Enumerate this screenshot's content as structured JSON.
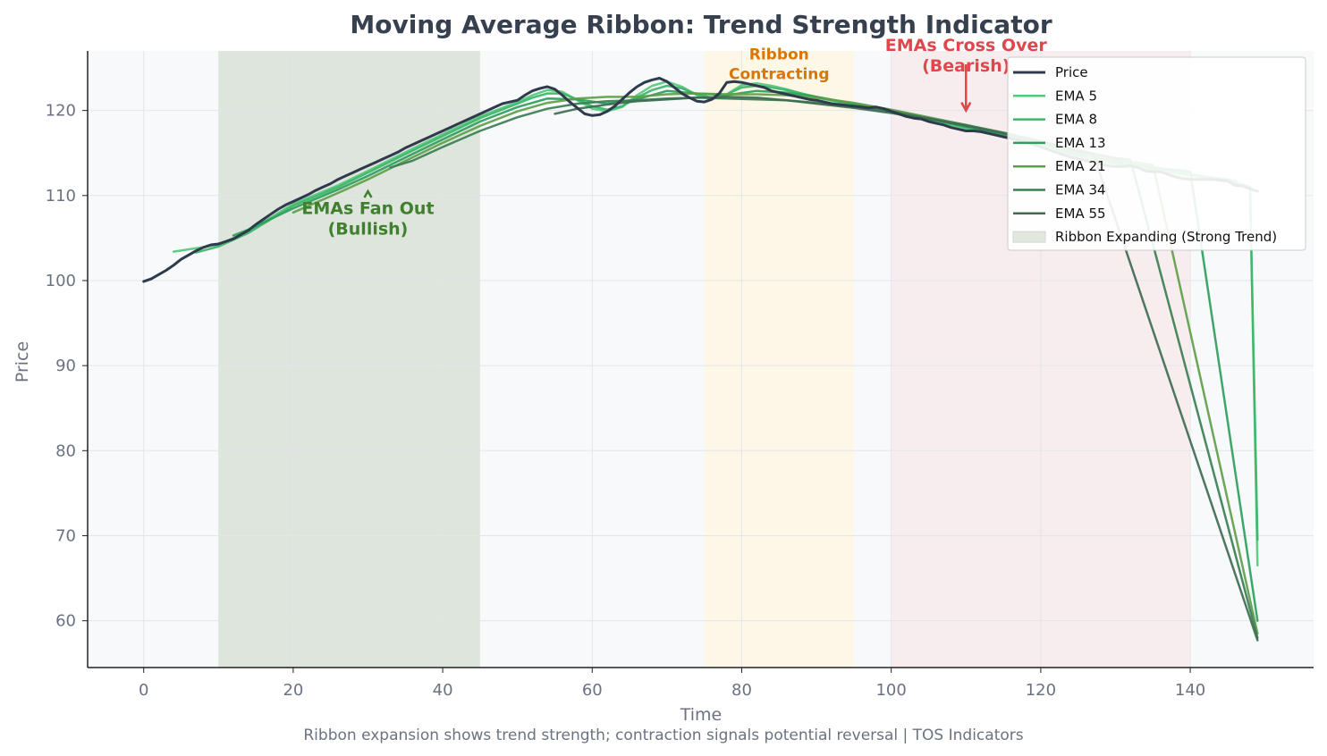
{
  "chart_data": {
    "type": "line",
    "title": "Moving Average Ribbon: Trend Strength Indicator",
    "xlabel": "Time",
    "ylabel": "Price",
    "caption": "Ribbon expansion shows trend strength; contraction signals potential reversal | TOS Indicators",
    "xlim": [
      -7.5,
      156.5
    ],
    "ylim": [
      54.5,
      127
    ],
    "x_ticks": [
      0,
      20,
      40,
      60,
      80,
      100,
      120,
      140
    ],
    "y_ticks": [
      60,
      70,
      80,
      90,
      100,
      110,
      120
    ],
    "grid": true,
    "legend_position": "top-right",
    "colors": {
      "price": "#2f3a4d",
      "ema5": "#55c97a",
      "ema8": "#3db56a",
      "ema13": "#2e9e5c",
      "ema21": "#5f9e4a",
      "ema34": "#3a7f52",
      "ema55": "#3f6b52",
      "expanding": "#d5ddd2",
      "contracting": "#fdf6dc",
      "crossover": "#f7e6e6"
    },
    "regions": [
      {
        "name": "Ribbon Expanding (Strong Trend)",
        "x": [
          10,
          45
        ],
        "color_key": "expanding"
      },
      {
        "name": "",
        "x": [
          75,
          95
        ],
        "color_key": "contracting"
      },
      {
        "name": "",
        "x": [
          100,
          140
        ],
        "color_key": "crossover"
      }
    ],
    "annotations": [
      {
        "text": "EMAs Fan Out\n(Bullish)",
        "x": 30,
        "y": 107.8,
        "arrow_to": [
          30,
          110.5
        ],
        "color": "#3f7f2e"
      },
      {
        "text": "Ribbon\nContracting",
        "x": 85,
        "y": 126,
        "color": "#d97706"
      },
      {
        "text": "EMAs Cross Over\n(Bearish)",
        "x": 110,
        "y": 127,
        "arrow_to": [
          110,
          120
        ],
        "color": "#e0474c"
      }
    ],
    "series": [
      {
        "name": "Price",
        "key": "price",
        "width": 3,
        "x": [
          0,
          1,
          2,
          3,
          4,
          5,
          6,
          7,
          8,
          9,
          10,
          11,
          12,
          13,
          14,
          15,
          16,
          17,
          18,
          19,
          20,
          21,
          22,
          23,
          24,
          25,
          26,
          27,
          28,
          29,
          30,
          31,
          32,
          33,
          34,
          35,
          36,
          37,
          38,
          39,
          40,
          41,
          42,
          43,
          44,
          45,
          46,
          47,
          48,
          49,
          50,
          51,
          52,
          53,
          54,
          55,
          56,
          57,
          58,
          59,
          60,
          61,
          62,
          63,
          64,
          65,
          66,
          67,
          68,
          69,
          70,
          71,
          72,
          73,
          74,
          75,
          76,
          77,
          78,
          79,
          80,
          81,
          82,
          83,
          84,
          85,
          86,
          87,
          88,
          89,
          90,
          91,
          92,
          93,
          94,
          95,
          96,
          97,
          98,
          99,
          100,
          101,
          102,
          103,
          104,
          105,
          106,
          107,
          108,
          109,
          110,
          111,
          112,
          113,
          114,
          115,
          116,
          117,
          118,
          119,
          120,
          121,
          122,
          123,
          124,
          125,
          126,
          127,
          128,
          129,
          130,
          131,
          132,
          133,
          134,
          135,
          136,
          137,
          138,
          139,
          140,
          141,
          142,
          143,
          144,
          145,
          146,
          147,
          148,
          149
        ],
        "y": [
          99.9,
          100.2,
          100.7,
          101.2,
          101.8,
          102.5,
          103.0,
          103.5,
          103.9,
          104.2,
          104.3,
          104.6,
          104.9,
          105.4,
          105.9,
          106.6,
          107.2,
          107.8,
          108.4,
          108.9,
          109.3,
          109.7,
          110.1,
          110.6,
          111.0,
          111.4,
          111.9,
          112.3,
          112.7,
          113.1,
          113.5,
          113.9,
          114.3,
          114.7,
          115.1,
          115.6,
          116.0,
          116.4,
          116.8,
          117.2,
          117.6,
          118.0,
          118.4,
          118.8,
          119.2,
          119.6,
          120.0,
          120.4,
          120.8,
          121.0,
          121.2,
          121.8,
          122.3,
          122.6,
          122.8,
          122.5,
          121.8,
          121.0,
          120.3,
          119.6,
          119.4,
          119.5,
          119.9,
          120.5,
          121.3,
          122.1,
          122.8,
          123.3,
          123.6,
          123.8,
          123.4,
          122.7,
          122.0,
          121.5,
          121.1,
          121.0,
          121.3,
          122.0,
          123.3,
          123.4,
          123.3,
          123.1,
          122.9,
          122.7,
          122.3,
          122.1,
          121.9,
          121.7,
          121.5,
          121.3,
          121.2,
          121.0,
          120.8,
          120.7,
          120.6,
          120.5,
          120.4,
          120.3,
          120.4,
          120.2,
          119.9,
          119.6,
          119.3,
          119.1,
          119.0,
          118.7,
          118.5,
          118.3,
          118.0,
          117.8,
          117.6,
          117.6,
          117.5,
          117.3,
          117.1,
          116.9,
          116.7,
          116.5,
          116.3,
          116.0,
          115.7,
          115.4,
          115.1,
          114.8,
          114.5,
          114.3,
          114.1,
          113.9,
          113.7,
          113.5,
          113.4,
          113.4,
          113.5,
          113.3,
          112.9,
          112.8,
          112.8,
          112.5,
          112.2,
          112.0,
          111.9,
          111.9,
          111.9,
          111.9,
          111.8,
          111.7,
          111.2,
          111.1,
          110.8,
          110.5
        ]
      },
      {
        "name": "EMA 5",
        "key": "ema5",
        "width": 2.5,
        "x": [
          4,
          10,
          14,
          20,
          26,
          30,
          36,
          40,
          45,
          50,
          52,
          54,
          56,
          58,
          60,
          62,
          64,
          66,
          68,
          70,
          72,
          74,
          76,
          78,
          80,
          82,
          84,
          86,
          88,
          90,
          95,
          100,
          105,
          110,
          115,
          120,
          125,
          130,
          135,
          140,
          145,
          146,
          147,
          148,
          149
        ],
        "y": [
          103.4,
          104.2,
          105.8,
          109.0,
          111.2,
          112.9,
          115.5,
          117.2,
          119.3,
          121.0,
          121.8,
          122.4,
          122.2,
          121.2,
          120.2,
          119.9,
          120.4,
          121.8,
          122.9,
          123.4,
          122.8,
          121.8,
          121.3,
          121.9,
          123.0,
          123.2,
          122.9,
          122.5,
          122.0,
          121.5,
          120.6,
          119.8,
          118.9,
          117.9,
          117.0,
          115.8,
          114.5,
          113.7,
          113.0,
          112.3,
          111.9,
          111.7,
          111.3,
          111.0,
          66.5
        ]
      },
      {
        "name": "EMA 8",
        "key": "ema8",
        "width": 2.5,
        "x": [
          7,
          10,
          14,
          20,
          26,
          30,
          36,
          40,
          45,
          50,
          52,
          54,
          56,
          58,
          60,
          62,
          64,
          66,
          68,
          70,
          72,
          74,
          76,
          78,
          80,
          82,
          84,
          86,
          88,
          90,
          95,
          100,
          105,
          110,
          115,
          120,
          125,
          130,
          135,
          140,
          143,
          145,
          146,
          148,
          149
        ],
        "y": [
          103.3,
          104.0,
          105.6,
          108.8,
          111.0,
          112.7,
          115.3,
          117.0,
          119.1,
          120.8,
          121.5,
          122.0,
          122.0,
          121.3,
          120.5,
          120.1,
          120.5,
          121.5,
          122.4,
          122.9,
          122.6,
          121.9,
          121.5,
          121.9,
          122.7,
          122.9,
          122.7,
          122.4,
          122.0,
          121.6,
          120.7,
          119.9,
          119.0,
          118.0,
          117.1,
          115.9,
          114.7,
          113.8,
          113.1,
          112.5,
          112.1,
          111.9,
          111.5,
          111.0,
          69.5
        ]
      },
      {
        "name": "EMA 13",
        "key": "ema13",
        "width": 2.5,
        "x": [
          12,
          14,
          20,
          26,
          30,
          36,
          40,
          45,
          50,
          54,
          58,
          62,
          66,
          70,
          74,
          78,
          82,
          86,
          90,
          95,
          100,
          105,
          110,
          115,
          120,
          125,
          130,
          135,
          138,
          140,
          149
        ],
        "y": [
          105.3,
          106.0,
          108.5,
          110.7,
          112.3,
          114.9,
          116.6,
          118.7,
          120.4,
          121.4,
          121.3,
          120.8,
          121.3,
          122.3,
          122.0,
          121.8,
          122.3,
          122.1,
          121.6,
          120.8,
          120.0,
          119.1,
          118.1,
          117.2,
          116.1,
          114.9,
          114.0,
          113.3,
          113.0,
          112.8,
          60.0
        ]
      },
      {
        "name": "EMA 21",
        "key": "ema21",
        "width": 2.5,
        "x": [
          20,
          26,
          30,
          36,
          40,
          45,
          50,
          54,
          58,
          62,
          66,
          70,
          74,
          78,
          82,
          86,
          90,
          95,
          100,
          105,
          110,
          115,
          120,
          125,
          130,
          135,
          149
        ],
        "y": [
          108.0,
          110.3,
          111.9,
          114.5,
          116.2,
          118.2,
          119.9,
          120.9,
          121.4,
          121.6,
          121.6,
          121.9,
          122.0,
          121.9,
          121.9,
          121.8,
          121.5,
          120.9,
          120.1,
          119.2,
          118.3,
          117.3,
          116.3,
          115.1,
          114.2,
          113.6,
          58.5
        ]
      },
      {
        "name": "EMA 34",
        "key": "ema34",
        "width": 2.5,
        "x": [
          33,
          36,
          40,
          45,
          50,
          54,
          58,
          62,
          66,
          70,
          74,
          78,
          82,
          86,
          90,
          95,
          100,
          105,
          110,
          115,
          120,
          125,
          130,
          132,
          149
        ],
        "y": [
          113.3,
          114.1,
          115.7,
          117.6,
          119.2,
          120.2,
          120.8,
          121.1,
          121.2,
          121.4,
          121.5,
          121.4,
          121.3,
          121.2,
          120.9,
          120.5,
          119.9,
          119.1,
          118.3,
          117.4,
          116.4,
          115.3,
          114.4,
          114.2,
          58.0
        ]
      },
      {
        "name": "EMA 55",
        "key": "ema55",
        "width": 2.5,
        "x": [
          55,
          58,
          62,
          66,
          70,
          74,
          78,
          82,
          86,
          90,
          95,
          100,
          105,
          110,
          115,
          120,
          125,
          127,
          149
        ],
        "y": [
          119.6,
          120.2,
          120.7,
          121.1,
          121.3,
          121.5,
          121.6,
          121.5,
          121.2,
          120.8,
          120.3,
          119.7,
          119.0,
          118.2,
          117.3,
          116.3,
          115.2,
          115.0,
          57.7
        ]
      }
    ]
  }
}
